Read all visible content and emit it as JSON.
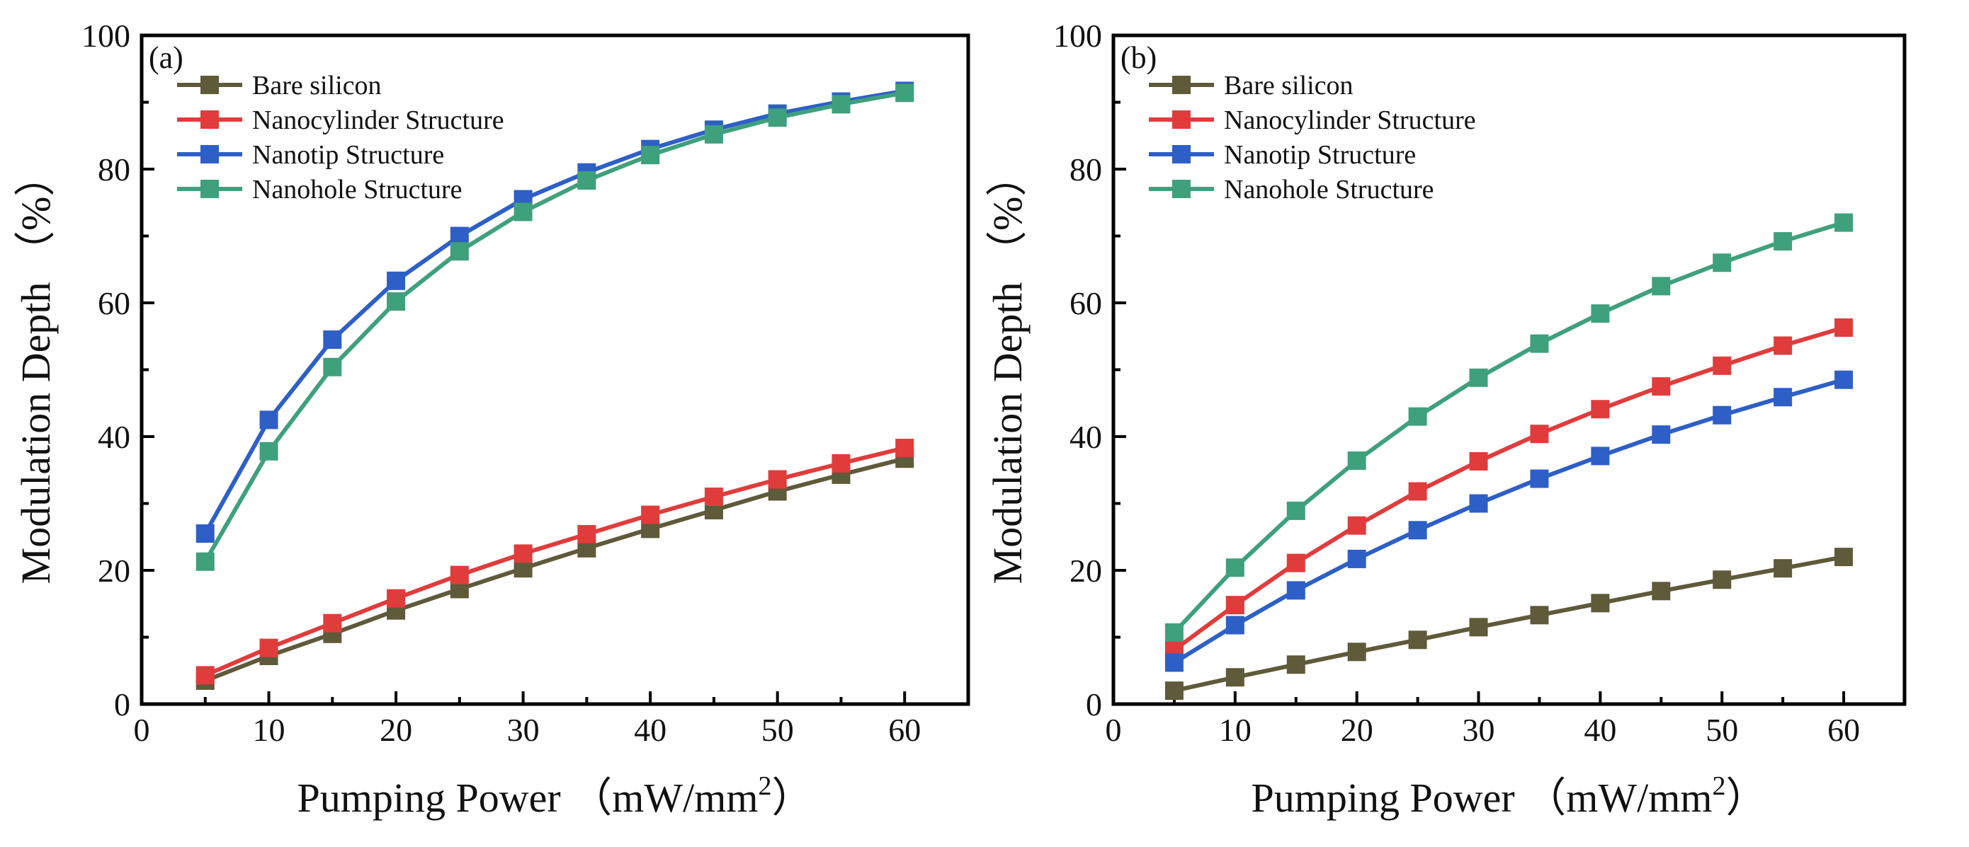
{
  "chart_data": [
    {
      "type": "line",
      "panel_label": "(a)",
      "xlabel": "Pumping Power （mW/mm",
      "xlabel_sup": "2",
      "xlabel_close": "）",
      "ylabel": "Modulation Depth （%）",
      "xlim": [
        0,
        65
      ],
      "ylim": [
        0,
        100
      ],
      "xticks": [
        "0",
        "10",
        "20",
        "30",
        "40",
        "50",
        "60"
      ],
      "yticks": [
        "0",
        "20",
        "40",
        "60",
        "80",
        "100"
      ],
      "legend_position": "top-left",
      "x": [
        5,
        10,
        15,
        20,
        25,
        30,
        35,
        40,
        45,
        50,
        55,
        60
      ],
      "series": [
        {
          "name": "Bare silicon",
          "color": "#5e5a3a",
          "values": [
            3.5,
            7.2,
            10.5,
            14.0,
            17.2,
            20.3,
            23.3,
            26.2,
            29.0,
            31.8,
            34.3,
            36.7
          ]
        },
        {
          "name": "Nanocylinder Structure",
          "color": "#e03c3c",
          "values": [
            4.3,
            8.4,
            12.1,
            15.8,
            19.3,
            22.5,
            25.4,
            28.3,
            31.0,
            33.6,
            36.0,
            38.3
          ]
        },
        {
          "name": "Nanotip Structure",
          "color": "#2e5fc6",
          "values": [
            25.5,
            42.5,
            54.5,
            63.3,
            70.0,
            75.5,
            79.5,
            83.0,
            85.9,
            88.3,
            90.1,
            91.7
          ]
        },
        {
          "name": "Nanohole Structure",
          "color": "#3fa07c",
          "values": [
            21.3,
            37.8,
            50.4,
            60.2,
            67.7,
            73.6,
            78.3,
            82.1,
            85.2,
            87.7,
            89.7,
            91.4
          ]
        }
      ]
    },
    {
      "type": "line",
      "panel_label": "(b)",
      "xlabel": "Pumping Power （mW/mm",
      "xlabel_sup": "2",
      "xlabel_close": "）",
      "ylabel": "Modulation Depth （%）",
      "xlim": [
        0,
        65
      ],
      "ylim": [
        0,
        100
      ],
      "xticks": [
        "0",
        "10",
        "20",
        "30",
        "40",
        "50",
        "60"
      ],
      "yticks": [
        "0",
        "20",
        "40",
        "60",
        "80",
        "100"
      ],
      "legend_position": "top-left",
      "x": [
        5,
        10,
        15,
        20,
        25,
        30,
        35,
        40,
        45,
        50,
        55,
        60
      ],
      "series": [
        {
          "name": "Bare silicon",
          "color": "#5e5a3a",
          "values": [
            2.0,
            4.0,
            5.9,
            7.8,
            9.6,
            11.5,
            13.3,
            15.1,
            16.9,
            18.6,
            20.3,
            22.0
          ]
        },
        {
          "name": "Nanocylinder Structure",
          "color": "#e03c3c",
          "values": [
            8.1,
            14.8,
            21.1,
            26.7,
            31.8,
            36.3,
            40.4,
            44.1,
            47.5,
            50.6,
            53.6,
            56.3
          ]
        },
        {
          "name": "Nanotip Structure",
          "color": "#2e5fc6",
          "values": [
            6.2,
            11.8,
            17.0,
            21.7,
            26.0,
            30.0,
            33.7,
            37.1,
            40.3,
            43.2,
            45.9,
            48.5
          ]
        },
        {
          "name": "Nanohole Structure",
          "color": "#3fa07c",
          "values": [
            10.7,
            20.4,
            28.9,
            36.4,
            43.0,
            48.8,
            53.9,
            58.4,
            62.5,
            66.0,
            69.2,
            72.0
          ]
        }
      ]
    }
  ]
}
